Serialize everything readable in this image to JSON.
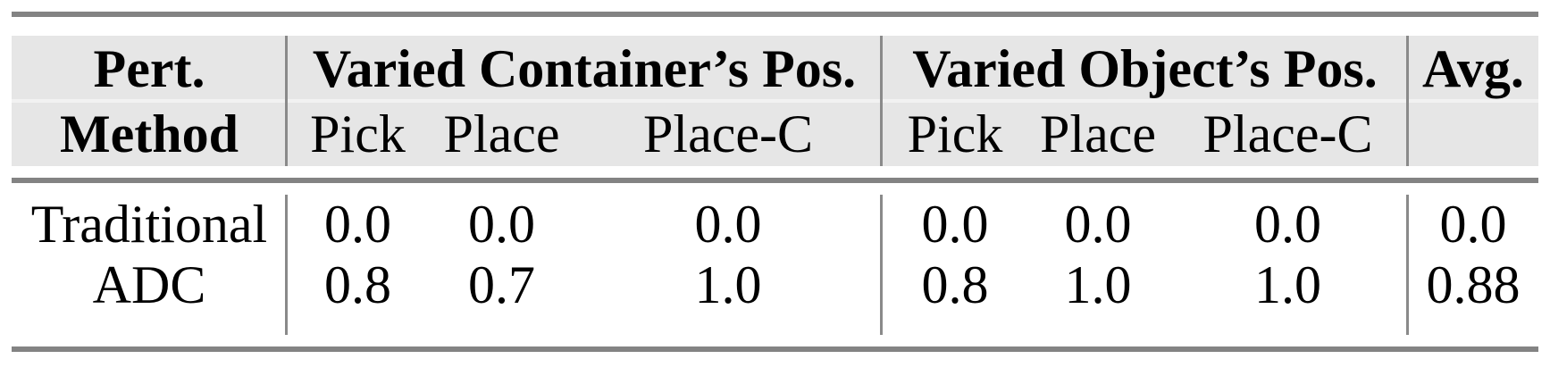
{
  "table": {
    "header": {
      "pert": "Pert.",
      "method": "Method",
      "group_container": "Varied Container’s Pos.",
      "group_object": "Varied Object’s Pos.",
      "avg": "Avg.",
      "sub": [
        "Pick",
        "Place",
        "Place-C"
      ]
    },
    "rows": [
      {
        "label": "Traditional",
        "values": [
          "0.0",
          "0.0",
          "0.0",
          "0.0",
          "0.0",
          "0.0"
        ],
        "avg": "0.0"
      },
      {
        "label": "ADC",
        "values": [
          "0.8",
          "0.7",
          "1.0",
          "0.8",
          "1.0",
          "1.0"
        ],
        "avg": "0.88"
      }
    ],
    "colors": {
      "page_background": "#ffffff",
      "header_background": "#e6e6e6",
      "header_row_separator": "#f2f2f2",
      "rule": "#838383",
      "column_divider": "#8a8a8a",
      "text": "#000000"
    }
  },
  "chart_data": {
    "type": "table",
    "row_header": "Pert. Method",
    "column_groups": [
      {
        "label": "Varied Container’s Pos.",
        "columns": [
          "Pick",
          "Place",
          "Place-C"
        ]
      },
      {
        "label": "Varied Object’s Pos.",
        "columns": [
          "Pick",
          "Place",
          "Place-C"
        ]
      }
    ],
    "extra_columns": [
      "Avg."
    ],
    "rows": [
      {
        "method": "Traditional",
        "varied_container_pos": {
          "pick": 0.0,
          "place": 0.0,
          "place_c": 0.0
        },
        "varied_object_pos": {
          "pick": 0.0,
          "place": 0.0,
          "place_c": 0.0
        },
        "avg": 0.0
      },
      {
        "method": "ADC",
        "varied_container_pos": {
          "pick": 0.8,
          "place": 0.7,
          "place_c": 1.0
        },
        "varied_object_pos": {
          "pick": 0.8,
          "place": 1.0,
          "place_c": 1.0
        },
        "avg": 0.88
      }
    ]
  }
}
